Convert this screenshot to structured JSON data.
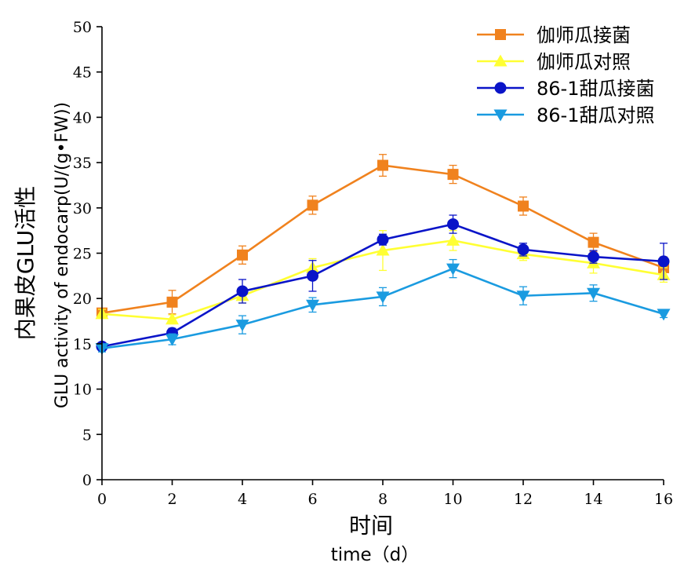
{
  "chart_data": {
    "type": "line",
    "x": [
      0,
      2,
      4,
      6,
      8,
      10,
      12,
      14,
      16
    ],
    "xlim": [
      0,
      16
    ],
    "ylim": [
      0,
      50
    ],
    "xticks": [
      0,
      2,
      4,
      6,
      8,
      10,
      12,
      14,
      16
    ],
    "yticks": [
      0,
      5,
      10,
      15,
      20,
      25,
      30,
      35,
      40,
      45,
      50
    ],
    "xlabel_cn": "时间",
    "xlabel_en": "time（d）",
    "ylabel_cn": "内果皮GLU活性",
    "ylabel_en": "GLU activity of endocarp(U/(g•FW))",
    "legend_position": "top-right",
    "grid": false,
    "series": [
      {
        "name": "伽师瓜接菌",
        "color": "#F0821E",
        "marker": "square",
        "values": [
          18.4,
          19.6,
          24.8,
          30.3,
          34.7,
          33.7,
          30.2,
          26.2,
          23.4
        ],
        "errors": [
          0.5,
          1.3,
          1.0,
          1.0,
          1.2,
          1.0,
          1.0,
          1.0,
          1.2
        ]
      },
      {
        "name": "伽师瓜对照",
        "color": "#FFFF33",
        "marker": "triangle-up",
        "values": [
          18.3,
          17.7,
          20.3,
          23.4,
          25.3,
          26.4,
          24.9,
          23.9,
          22.6
        ],
        "errors": [
          0.5,
          0.5,
          0.8,
          1.0,
          2.2,
          1.1,
          0.7,
          1.1,
          0.8
        ]
      },
      {
        "name": "86-1甜瓜接菌",
        "color": "#0A14C8",
        "marker": "circle",
        "values": [
          14.7,
          16.2,
          20.8,
          22.5,
          26.5,
          28.2,
          25.4,
          24.6,
          24.1
        ],
        "errors": [
          0.4,
          0.5,
          1.3,
          1.7,
          0.6,
          1.0,
          0.7,
          0.7,
          2.0
        ]
      },
      {
        "name": "86-1甜瓜对照",
        "color": "#1A9BE0",
        "marker": "triangle-down",
        "values": [
          14.5,
          15.5,
          17.1,
          19.3,
          20.2,
          23.3,
          20.3,
          20.6,
          18.3
        ],
        "errors": [
          0.4,
          0.6,
          1.0,
          0.8,
          1.0,
          1.0,
          1.0,
          0.9,
          0.4
        ]
      }
    ]
  }
}
